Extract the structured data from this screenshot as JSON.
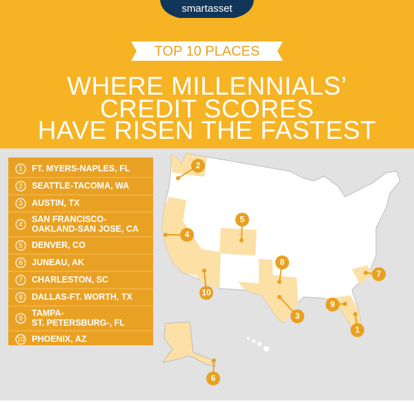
{
  "logo": "smartasset",
  "banner": "TOP 10 PLACES",
  "title": [
    "WHERE MILLENNIALS’",
    "CREDIT SCORES",
    "HAVE RISEN THE FASTEST"
  ],
  "list": [
    {
      "rank": "1",
      "lines": [
        "FT. MYERS-NAPLES, FL"
      ]
    },
    {
      "rank": "2",
      "lines": [
        "SEATTLE-TACOMA, WA"
      ]
    },
    {
      "rank": "3",
      "lines": [
        "AUSTIN, TX"
      ]
    },
    {
      "rank": "4",
      "lines": [
        "SAN FRANCISCO-",
        "OAKLAND-SAN JOSE, CA"
      ]
    },
    {
      "rank": "5",
      "lines": [
        "DENVER, CO"
      ]
    },
    {
      "rank": "6",
      "lines": [
        "JUNEAU, AK"
      ]
    },
    {
      "rank": "7",
      "lines": [
        "CHARLESTON, SC"
      ]
    },
    {
      "rank": "8",
      "lines": [
        "DALLAS-FT. WORTH, TX"
      ]
    },
    {
      "rank": "9",
      "lines": [
        "TAMPA-",
        "ST. PETERSBURG-, FL"
      ]
    },
    {
      "rank": "10",
      "lines": [
        "PHOENIX, AZ"
      ]
    }
  ],
  "map": {
    "markers": [
      "2",
      "5",
      "4",
      "8",
      "7",
      "10",
      "9",
      "3",
      "1",
      "6"
    ]
  }
}
